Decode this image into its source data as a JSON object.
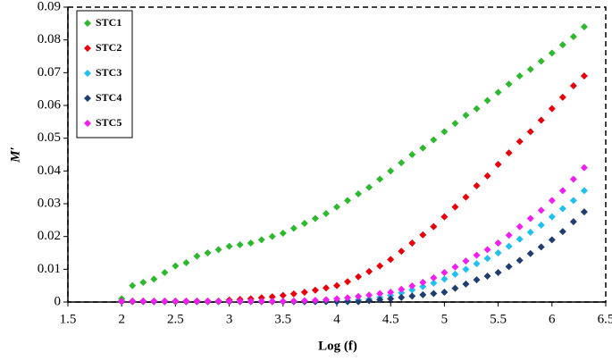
{
  "chart_data": {
    "type": "scatter",
    "x_label": "Log (f)",
    "y_label": "M′",
    "xlim": [
      1.5,
      6.5
    ],
    "xticks": [
      1.5,
      2,
      2.5,
      3,
      3.5,
      4,
      4.5,
      5,
      5.5,
      6,
      6.5
    ],
    "ylim": [
      0,
      0.09
    ],
    "yticks": [
      0,
      0.01,
      0.02,
      0.03,
      0.04,
      0.05,
      0.06,
      0.07,
      0.08,
      0.09
    ],
    "legend": "top-left",
    "x": [
      2.0,
      2.1,
      2.2,
      2.3,
      2.4,
      2.5,
      2.6,
      2.7,
      2.8,
      2.9,
      3.0,
      3.1,
      3.2,
      3.3,
      3.4,
      3.5,
      3.6,
      3.7,
      3.8,
      3.9,
      4.0,
      4.1,
      4.2,
      4.3,
      4.4,
      4.5,
      4.6,
      4.7,
      4.8,
      4.9,
      5.0,
      5.1,
      5.2,
      5.3,
      5.4,
      5.5,
      5.6,
      5.7,
      5.8,
      5.9,
      6.0,
      6.1,
      6.2,
      6.3
    ],
    "series": [
      {
        "name": "STC1",
        "color": "#2db82d",
        "values": [
          0.001,
          0.005,
          0.006,
          0.007,
          0.009,
          0.011,
          0.012,
          0.014,
          0.015,
          0.016,
          0.017,
          0.0175,
          0.018,
          0.019,
          0.02,
          0.021,
          0.0225,
          0.024,
          0.0255,
          0.027,
          0.029,
          0.031,
          0.033,
          0.035,
          0.0375,
          0.04,
          0.0425,
          0.045,
          0.047,
          0.0495,
          0.052,
          0.0545,
          0.057,
          0.059,
          0.0615,
          0.064,
          0.0665,
          0.069,
          0.071,
          0.0735,
          0.076,
          0.0785,
          0.081,
          0.084
        ]
      },
      {
        "name": "STC2",
        "color": "#e8000b",
        "values": [
          0.0003,
          0.0003,
          0.0003,
          0.0003,
          0.0003,
          0.0003,
          0.0003,
          0.0003,
          0.0003,
          0.0003,
          0.0006,
          0.0008,
          0.001,
          0.0013,
          0.0016,
          0.002,
          0.0025,
          0.003,
          0.0036,
          0.0043,
          0.005,
          0.0062,
          0.0077,
          0.0093,
          0.011,
          0.013,
          0.0155,
          0.018,
          0.0205,
          0.023,
          0.026,
          0.029,
          0.032,
          0.0355,
          0.0385,
          0.042,
          0.0455,
          0.049,
          0.052,
          0.0555,
          0.059,
          0.0625,
          0.066,
          0.069
        ]
      },
      {
        "name": "STC3",
        "color": "#1ec0f0",
        "values": [
          0.0002,
          0.0002,
          0.0002,
          0.0002,
          0.0002,
          0.0002,
          0.0002,
          0.0002,
          0.0002,
          0.0002,
          0.0002,
          0.0002,
          0.0002,
          0.0002,
          0.0002,
          0.0002,
          0.0002,
          0.0002,
          0.0002,
          0.0002,
          0.0002,
          0.0004,
          0.0006,
          0.0009,
          0.0014,
          0.002,
          0.0028,
          0.0037,
          0.0047,
          0.0058,
          0.007,
          0.0085,
          0.01,
          0.0117,
          0.0133,
          0.015,
          0.017,
          0.0192,
          0.0213,
          0.0235,
          0.026,
          0.0285,
          0.031,
          0.034
        ]
      },
      {
        "name": "STC4",
        "color": "#1f3d6e",
        "values": [
          0.0001,
          0.0001,
          0.0001,
          0.0001,
          0.0001,
          0.0001,
          0.0001,
          0.0001,
          0.0001,
          0.0001,
          0.0001,
          0.0001,
          0.0001,
          0.0001,
          0.0001,
          0.0001,
          0.0001,
          0.0001,
          0.0001,
          0.0001,
          0.0001,
          0.0001,
          0.0001,
          0.0004,
          0.0007,
          0.001,
          0.0014,
          0.0018,
          0.0022,
          0.0026,
          0.003,
          0.0042,
          0.0055,
          0.0068,
          0.0079,
          0.009,
          0.0108,
          0.0127,
          0.0148,
          0.0168,
          0.019,
          0.0215,
          0.0245,
          0.0275
        ]
      },
      {
        "name": "STC5",
        "color": "#f01ef0",
        "values": [
          0.0002,
          0.0002,
          0.0002,
          0.0002,
          0.0002,
          0.0002,
          0.0002,
          0.0002,
          0.0002,
          0.0002,
          0.0002,
          0.0002,
          0.0002,
          0.0002,
          0.0002,
          0.0002,
          0.0003,
          0.0004,
          0.0005,
          0.0007,
          0.001,
          0.0013,
          0.0017,
          0.0021,
          0.0026,
          0.003,
          0.0039,
          0.0049,
          0.006,
          0.0074,
          0.009,
          0.0107,
          0.0125,
          0.0143,
          0.016,
          0.018,
          0.0204,
          0.023,
          0.0255,
          0.028,
          0.031,
          0.034,
          0.0375,
          0.041
        ]
      }
    ]
  }
}
